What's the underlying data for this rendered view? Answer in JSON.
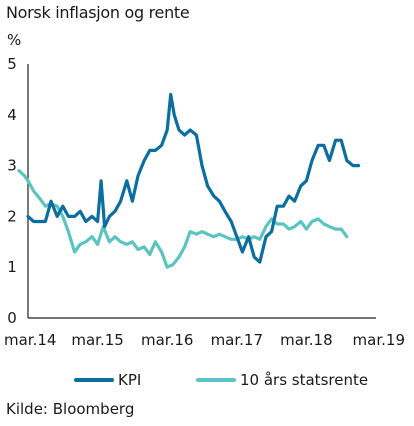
{
  "chart_data": {
    "type": "line",
    "title": "Norsk inflasjon og rente",
    "y_unit": "%",
    "source": "Kilde: Bloomberg",
    "x_range": [
      2014.0,
      2019.0
    ],
    "ylim": [
      0,
      5
    ],
    "y_ticks": [
      "0",
      "1",
      "2",
      "3",
      "4",
      "5"
    ],
    "x_ticks": [
      {
        "label": "mar.14",
        "x": 2014.0
      },
      {
        "label": "mar.15",
        "x": 2015.0
      },
      {
        "label": "mar.16",
        "x": 2016.0
      },
      {
        "label": "mar.17",
        "x": 2017.0
      },
      {
        "label": "mar.18",
        "x": 2018.0
      },
      {
        "label": "mar.19",
        "x": 2019.0
      }
    ],
    "grid": false,
    "legend_position": "bottom",
    "series": [
      {
        "name": "KPI",
        "color": "#0a6ea0",
        "points": [
          [
            2014.0,
            2.0
          ],
          [
            2014.08,
            1.9
          ],
          [
            2014.17,
            1.9
          ],
          [
            2014.25,
            1.9
          ],
          [
            2014.33,
            2.3
          ],
          [
            2014.42,
            2.0
          ],
          [
            2014.5,
            2.2
          ],
          [
            2014.58,
            2.0
          ],
          [
            2014.67,
            2.0
          ],
          [
            2014.75,
            2.1
          ],
          [
            2014.83,
            1.9
          ],
          [
            2014.92,
            2.0
          ],
          [
            2015.0,
            1.9
          ],
          [
            2015.05,
            2.7
          ],
          [
            2015.1,
            1.8
          ],
          [
            2015.17,
            2.0
          ],
          [
            2015.25,
            2.1
          ],
          [
            2015.33,
            2.3
          ],
          [
            2015.42,
            2.7
          ],
          [
            2015.5,
            2.3
          ],
          [
            2015.58,
            2.8
          ],
          [
            2015.67,
            3.1
          ],
          [
            2015.75,
            3.3
          ],
          [
            2015.83,
            3.3
          ],
          [
            2015.92,
            3.4
          ],
          [
            2016.0,
            3.7
          ],
          [
            2016.05,
            4.4
          ],
          [
            2016.1,
            4.0
          ],
          [
            2016.17,
            3.7
          ],
          [
            2016.25,
            3.6
          ],
          [
            2016.33,
            3.7
          ],
          [
            2016.42,
            3.6
          ],
          [
            2016.5,
            3.0
          ],
          [
            2016.58,
            2.6
          ],
          [
            2016.67,
            2.4
          ],
          [
            2016.75,
            2.3
          ],
          [
            2016.83,
            2.1
          ],
          [
            2016.92,
            1.9
          ],
          [
            2017.0,
            1.6
          ],
          [
            2017.08,
            1.3
          ],
          [
            2017.17,
            1.6
          ],
          [
            2017.25,
            1.2
          ],
          [
            2017.33,
            1.1
          ],
          [
            2017.42,
            1.6
          ],
          [
            2017.5,
            1.7
          ],
          [
            2017.58,
            2.2
          ],
          [
            2017.67,
            2.2
          ],
          [
            2017.75,
            2.4
          ],
          [
            2017.83,
            2.3
          ],
          [
            2017.92,
            2.6
          ],
          [
            2018.0,
            2.7
          ],
          [
            2018.08,
            3.1
          ],
          [
            2018.17,
            3.4
          ],
          [
            2018.25,
            3.4
          ],
          [
            2018.33,
            3.1
          ],
          [
            2018.42,
            3.5
          ],
          [
            2018.5,
            3.5
          ],
          [
            2018.58,
            3.1
          ],
          [
            2018.67,
            3.0
          ],
          [
            2018.75,
            3.0
          ]
        ]
      },
      {
        "name": "10 års statsrente",
        "color": "#5cc4c0",
        "points": [
          [
            2013.87,
            2.9
          ],
          [
            2013.95,
            2.8
          ],
          [
            2014.0,
            2.7
          ],
          [
            2014.08,
            2.5
          ],
          [
            2014.17,
            2.35
          ],
          [
            2014.25,
            2.2
          ],
          [
            2014.33,
            2.25
          ],
          [
            2014.42,
            2.2
          ],
          [
            2014.5,
            2.0
          ],
          [
            2014.58,
            1.7
          ],
          [
            2014.67,
            1.3
          ],
          [
            2014.75,
            1.45
          ],
          [
            2014.83,
            1.5
          ],
          [
            2014.92,
            1.6
          ],
          [
            2015.0,
            1.45
          ],
          [
            2015.08,
            1.8
          ],
          [
            2015.17,
            1.5
          ],
          [
            2015.25,
            1.6
          ],
          [
            2015.33,
            1.5
          ],
          [
            2015.42,
            1.45
          ],
          [
            2015.5,
            1.5
          ],
          [
            2015.58,
            1.35
          ],
          [
            2015.67,
            1.4
          ],
          [
            2015.75,
            1.25
          ],
          [
            2015.83,
            1.5
          ],
          [
            2015.92,
            1.3
          ],
          [
            2016.0,
            1.0
          ],
          [
            2016.08,
            1.05
          ],
          [
            2016.17,
            1.2
          ],
          [
            2016.25,
            1.4
          ],
          [
            2016.33,
            1.7
          ],
          [
            2016.42,
            1.65
          ],
          [
            2016.5,
            1.7
          ],
          [
            2016.58,
            1.65
          ],
          [
            2016.67,
            1.6
          ],
          [
            2016.75,
            1.65
          ],
          [
            2016.83,
            1.6
          ],
          [
            2016.92,
            1.55
          ],
          [
            2017.0,
            1.55
          ],
          [
            2017.08,
            1.6
          ],
          [
            2017.17,
            1.55
          ],
          [
            2017.25,
            1.6
          ],
          [
            2017.33,
            1.55
          ],
          [
            2017.42,
            1.8
          ],
          [
            2017.5,
            1.95
          ],
          [
            2017.58,
            1.85
          ],
          [
            2017.67,
            1.85
          ],
          [
            2017.75,
            1.75
          ],
          [
            2017.83,
            1.8
          ],
          [
            2017.92,
            1.9
          ],
          [
            2018.0,
            1.75
          ],
          [
            2018.08,
            1.9
          ],
          [
            2018.17,
            1.95
          ],
          [
            2018.25,
            1.85
          ],
          [
            2018.33,
            1.8
          ],
          [
            2018.42,
            1.75
          ],
          [
            2018.5,
            1.75
          ],
          [
            2018.58,
            1.6
          ]
        ]
      }
    ]
  }
}
